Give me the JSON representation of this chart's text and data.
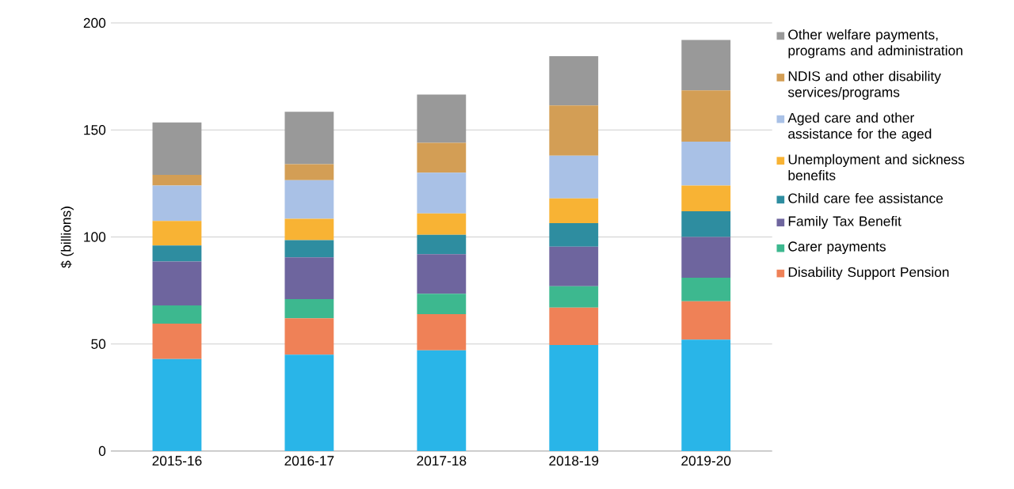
{
  "chart_data": {
    "type": "bar",
    "stacked": true,
    "ylabel": "$ (billions)",
    "categories": [
      "2015-16",
      "2016-17",
      "2017-18",
      "2018-19",
      "2019-20"
    ],
    "ylim": [
      0,
      200
    ],
    "yticks": [
      0,
      50,
      100,
      150,
      200
    ],
    "grid": "y",
    "legend": "right",
    "series": [
      {
        "color": "#29b5e8",
        "values": [
          43,
          45,
          47,
          49.5,
          52
        ]
      },
      {
        "name": "Disability Support Pension",
        "color": "#ef8157",
        "values": [
          16.5,
          17,
          17,
          17.5,
          18
        ]
      },
      {
        "name": "Carer payments",
        "color": "#3db88f",
        "values": [
          8.5,
          9,
          9.5,
          10,
          11
        ]
      },
      {
        "name": "Family Tax Benefit",
        "color": "#6e659e",
        "values": [
          20.5,
          19.5,
          18.5,
          18.5,
          19
        ]
      },
      {
        "name": "Child care fee assistance",
        "color": "#2e8da0",
        "values": [
          7.5,
          8,
          9,
          11,
          12
        ]
      },
      {
        "name": "Unemployment and sickness benefits",
        "color": "#f8b334",
        "values": [
          11.5,
          10,
          10,
          11.5,
          12
        ]
      },
      {
        "name": "Aged care and other assistance for the aged",
        "color": "#a9c1e6",
        "values": [
          16.5,
          18,
          19,
          20,
          20.5
        ]
      },
      {
        "name": "NDIS and other disability services/programs",
        "color": "#d39e55",
        "values": [
          5,
          7.5,
          14,
          23.5,
          24
        ]
      },
      {
        "name": "Other welfare payments, programs and administration",
        "color": "#999999",
        "values": [
          24.5,
          24.5,
          22.5,
          23,
          23.5
        ]
      }
    ]
  }
}
